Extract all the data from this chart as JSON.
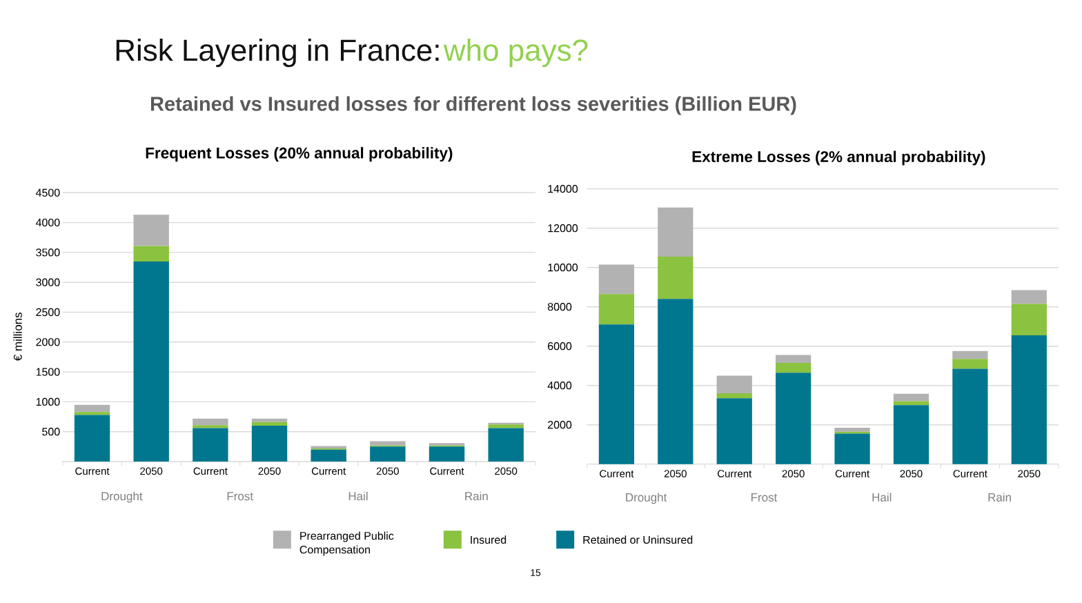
{
  "chart_data": [
    {
      "type": "bar",
      "stacked": true,
      "title": "Frequent Losses (20% annual probability)",
      "ylabel": "€ millions",
      "categories": [
        "Current",
        "2050",
        "Current",
        "2050",
        "Current",
        "2050",
        "Current",
        "2050"
      ],
      "series": [
        {
          "name": "Retained or Uninsured",
          "color": "#00778f",
          "values": [
            780,
            3350,
            560,
            600,
            200,
            250,
            250,
            560
          ]
        },
        {
          "name": "Insured",
          "color": "#8bc23f",
          "values": [
            50,
            260,
            50,
            60,
            20,
            20,
            20,
            60
          ]
        },
        {
          "name": "Prearranged Public Compensation",
          "color": "#b2b2b2",
          "values": [
            120,
            520,
            110,
            60,
            40,
            70,
            40,
            30
          ]
        }
      ],
      "ylim": [
        0,
        4500
      ],
      "yticks": [
        500,
        1000,
        1500,
        2000,
        2500,
        3000,
        3500,
        4000,
        4500
      ],
      "grid": "y",
      "legend": "bottom",
      "annotations": [
        "Drought",
        "Frost",
        "Hail",
        "Rain",
        "Risk Layering in France:",
        "who pays?",
        "Retained vs Insured losses for different loss severities (Billion EUR)",
        "15"
      ]
    },
    {
      "type": "bar",
      "stacked": true,
      "title": "Extreme Losses (2% annual probability)",
      "categories": [
        "Current",
        "2050",
        "Current",
        "2050",
        "Current",
        "2050",
        "Current",
        "2050"
      ],
      "series": [
        {
          "color": "#00778f",
          "values": [
            7100,
            8400,
            3350,
            4650,
            1550,
            3000,
            4850,
            6550
          ]
        },
        {
          "color": "#8bc23f",
          "values": [
            1550,
            2150,
            250,
            500,
            100,
            200,
            500,
            1600
          ]
        },
        {
          "color": "#b2b2b2",
          "values": [
            1500,
            2500,
            900,
            400,
            200,
            380,
            400,
            700
          ]
        }
      ],
      "ylim": [
        0,
        14000
      ],
      "yticks": [
        2000,
        4000,
        6000,
        8000,
        10000,
        12000,
        14000
      ],
      "grid": "y",
      "annotations": [
        "Drought",
        "Frost",
        "Hail",
        "Rain"
      ]
    }
  ]
}
